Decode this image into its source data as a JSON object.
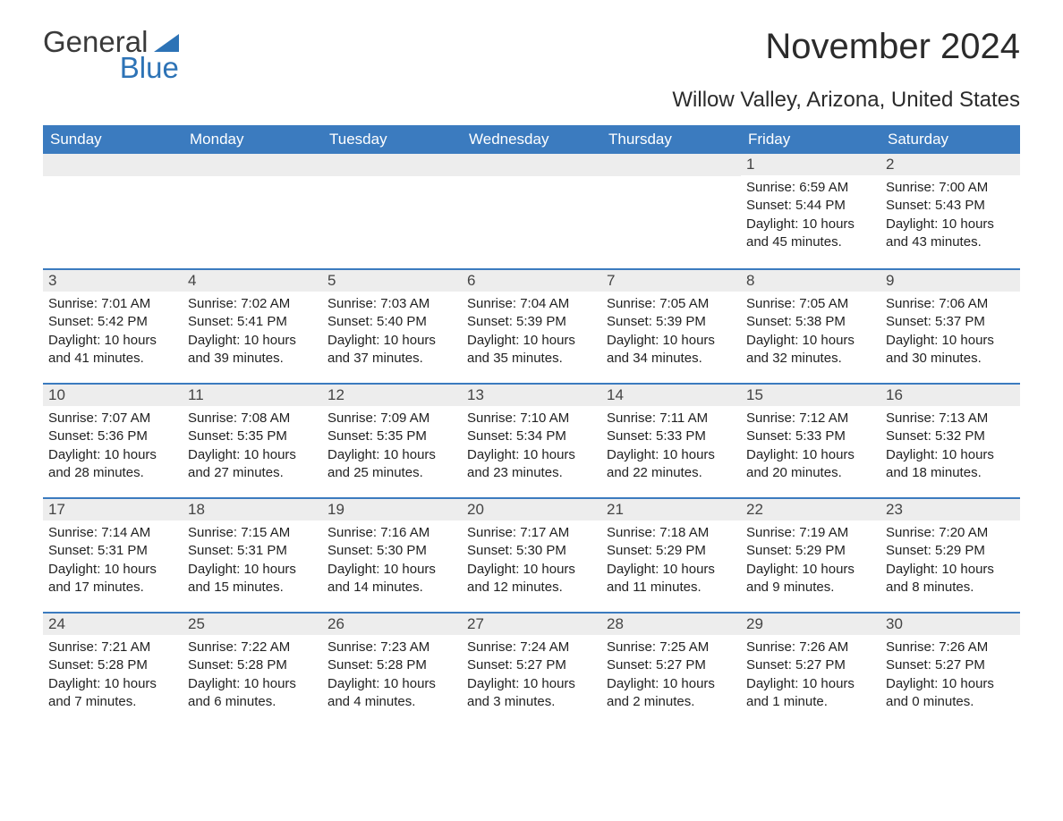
{
  "logo": {
    "text_general": "General",
    "text_blue": "Blue",
    "color_text": "#3a3a3a",
    "color_blue": "#2d73b6"
  },
  "title": "November 2024",
  "location": "Willow Valley, Arizona, United States",
  "colors": {
    "header_bg": "#3b7bbf",
    "header_fg": "#ffffff",
    "daynum_bg": "#ededed",
    "row_border": "#3b7bbf",
    "body_bg": "#ffffff",
    "text": "#222222"
  },
  "typography": {
    "title_fontsize": 40,
    "location_fontsize": 24,
    "weekday_fontsize": 17,
    "daynum_fontsize": 17,
    "body_fontsize": 15
  },
  "weekdays": [
    "Sunday",
    "Monday",
    "Tuesday",
    "Wednesday",
    "Thursday",
    "Friday",
    "Saturday"
  ],
  "weeks": [
    [
      null,
      null,
      null,
      null,
      null,
      {
        "n": "1",
        "sunrise": "Sunrise: 6:59 AM",
        "sunset": "Sunset: 5:44 PM",
        "dl1": "Daylight: 10 hours",
        "dl2": "and 45 minutes."
      },
      {
        "n": "2",
        "sunrise": "Sunrise: 7:00 AM",
        "sunset": "Sunset: 5:43 PM",
        "dl1": "Daylight: 10 hours",
        "dl2": "and 43 minutes."
      }
    ],
    [
      {
        "n": "3",
        "sunrise": "Sunrise: 7:01 AM",
        "sunset": "Sunset: 5:42 PM",
        "dl1": "Daylight: 10 hours",
        "dl2": "and 41 minutes."
      },
      {
        "n": "4",
        "sunrise": "Sunrise: 7:02 AM",
        "sunset": "Sunset: 5:41 PM",
        "dl1": "Daylight: 10 hours",
        "dl2": "and 39 minutes."
      },
      {
        "n": "5",
        "sunrise": "Sunrise: 7:03 AM",
        "sunset": "Sunset: 5:40 PM",
        "dl1": "Daylight: 10 hours",
        "dl2": "and 37 minutes."
      },
      {
        "n": "6",
        "sunrise": "Sunrise: 7:04 AM",
        "sunset": "Sunset: 5:39 PM",
        "dl1": "Daylight: 10 hours",
        "dl2": "and 35 minutes."
      },
      {
        "n": "7",
        "sunrise": "Sunrise: 7:05 AM",
        "sunset": "Sunset: 5:39 PM",
        "dl1": "Daylight: 10 hours",
        "dl2": "and 34 minutes."
      },
      {
        "n": "8",
        "sunrise": "Sunrise: 7:05 AM",
        "sunset": "Sunset: 5:38 PM",
        "dl1": "Daylight: 10 hours",
        "dl2": "and 32 minutes."
      },
      {
        "n": "9",
        "sunrise": "Sunrise: 7:06 AM",
        "sunset": "Sunset: 5:37 PM",
        "dl1": "Daylight: 10 hours",
        "dl2": "and 30 minutes."
      }
    ],
    [
      {
        "n": "10",
        "sunrise": "Sunrise: 7:07 AM",
        "sunset": "Sunset: 5:36 PM",
        "dl1": "Daylight: 10 hours",
        "dl2": "and 28 minutes."
      },
      {
        "n": "11",
        "sunrise": "Sunrise: 7:08 AM",
        "sunset": "Sunset: 5:35 PM",
        "dl1": "Daylight: 10 hours",
        "dl2": "and 27 minutes."
      },
      {
        "n": "12",
        "sunrise": "Sunrise: 7:09 AM",
        "sunset": "Sunset: 5:35 PM",
        "dl1": "Daylight: 10 hours",
        "dl2": "and 25 minutes."
      },
      {
        "n": "13",
        "sunrise": "Sunrise: 7:10 AM",
        "sunset": "Sunset: 5:34 PM",
        "dl1": "Daylight: 10 hours",
        "dl2": "and 23 minutes."
      },
      {
        "n": "14",
        "sunrise": "Sunrise: 7:11 AM",
        "sunset": "Sunset: 5:33 PM",
        "dl1": "Daylight: 10 hours",
        "dl2": "and 22 minutes."
      },
      {
        "n": "15",
        "sunrise": "Sunrise: 7:12 AM",
        "sunset": "Sunset: 5:33 PM",
        "dl1": "Daylight: 10 hours",
        "dl2": "and 20 minutes."
      },
      {
        "n": "16",
        "sunrise": "Sunrise: 7:13 AM",
        "sunset": "Sunset: 5:32 PM",
        "dl1": "Daylight: 10 hours",
        "dl2": "and 18 minutes."
      }
    ],
    [
      {
        "n": "17",
        "sunrise": "Sunrise: 7:14 AM",
        "sunset": "Sunset: 5:31 PM",
        "dl1": "Daylight: 10 hours",
        "dl2": "and 17 minutes."
      },
      {
        "n": "18",
        "sunrise": "Sunrise: 7:15 AM",
        "sunset": "Sunset: 5:31 PM",
        "dl1": "Daylight: 10 hours",
        "dl2": "and 15 minutes."
      },
      {
        "n": "19",
        "sunrise": "Sunrise: 7:16 AM",
        "sunset": "Sunset: 5:30 PM",
        "dl1": "Daylight: 10 hours",
        "dl2": "and 14 minutes."
      },
      {
        "n": "20",
        "sunrise": "Sunrise: 7:17 AM",
        "sunset": "Sunset: 5:30 PM",
        "dl1": "Daylight: 10 hours",
        "dl2": "and 12 minutes."
      },
      {
        "n": "21",
        "sunrise": "Sunrise: 7:18 AM",
        "sunset": "Sunset: 5:29 PM",
        "dl1": "Daylight: 10 hours",
        "dl2": "and 11 minutes."
      },
      {
        "n": "22",
        "sunrise": "Sunrise: 7:19 AM",
        "sunset": "Sunset: 5:29 PM",
        "dl1": "Daylight: 10 hours",
        "dl2": "and 9 minutes."
      },
      {
        "n": "23",
        "sunrise": "Sunrise: 7:20 AM",
        "sunset": "Sunset: 5:29 PM",
        "dl1": "Daylight: 10 hours",
        "dl2": "and 8 minutes."
      }
    ],
    [
      {
        "n": "24",
        "sunrise": "Sunrise: 7:21 AM",
        "sunset": "Sunset: 5:28 PM",
        "dl1": "Daylight: 10 hours",
        "dl2": "and 7 minutes."
      },
      {
        "n": "25",
        "sunrise": "Sunrise: 7:22 AM",
        "sunset": "Sunset: 5:28 PM",
        "dl1": "Daylight: 10 hours",
        "dl2": "and 6 minutes."
      },
      {
        "n": "26",
        "sunrise": "Sunrise: 7:23 AM",
        "sunset": "Sunset: 5:28 PM",
        "dl1": "Daylight: 10 hours",
        "dl2": "and 4 minutes."
      },
      {
        "n": "27",
        "sunrise": "Sunrise: 7:24 AM",
        "sunset": "Sunset: 5:27 PM",
        "dl1": "Daylight: 10 hours",
        "dl2": "and 3 minutes."
      },
      {
        "n": "28",
        "sunrise": "Sunrise: 7:25 AM",
        "sunset": "Sunset: 5:27 PM",
        "dl1": "Daylight: 10 hours",
        "dl2": "and 2 minutes."
      },
      {
        "n": "29",
        "sunrise": "Sunrise: 7:26 AM",
        "sunset": "Sunset: 5:27 PM",
        "dl1": "Daylight: 10 hours",
        "dl2": "and 1 minute."
      },
      {
        "n": "30",
        "sunrise": "Sunrise: 7:26 AM",
        "sunset": "Sunset: 5:27 PM",
        "dl1": "Daylight: 10 hours",
        "dl2": "and 0 minutes."
      }
    ]
  ]
}
